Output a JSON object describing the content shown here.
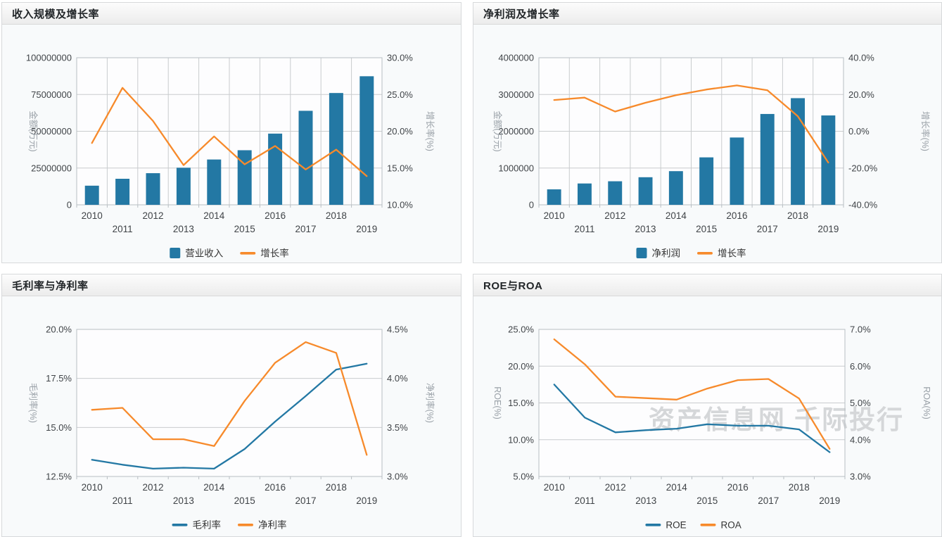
{
  "colors": {
    "bar_blue": "#2378A4",
    "line_blue": "#2378A4",
    "line_orange": "#F78A2B",
    "grid_line": "#C9CCCE",
    "axis_line": "#B8BEC3",
    "tick_text": "#404448",
    "axis_title_text": "#9AA1A8",
    "legend_text": "#333333",
    "watermark_text": "#D5D7D9",
    "plot_background": "#FDFDFE"
  },
  "watermark": "资产信息网 千际投行",
  "chart_data": [
    {
      "type": "bar+line",
      "title": "收入规模及增长率",
      "categories": [
        "2010",
        "2011",
        "2012",
        "2013",
        "2014",
        "2015",
        "2016",
        "2017",
        "2018",
        "2019"
      ],
      "left_axis": {
        "title": "金额(万元)",
        "min": 0,
        "max": 100000000,
        "tick_labels": [
          "0",
          "25000000",
          "50000000",
          "75000000",
          "100000000"
        ]
      },
      "right_axis": {
        "title": "增长率(%)",
        "min": 10,
        "max": 30,
        "tick_labels": [
          "10.0%",
          "15.0%",
          "20.0%",
          "25.0%",
          "30.0%"
        ]
      },
      "legend_position": "bottom",
      "grid": "horizontal+vertical",
      "series": [
        {
          "name": "营业收入",
          "type": "bar",
          "axis": "left",
          "values": [
            13000000,
            17700000,
            21500000,
            25200000,
            30800000,
            37100000,
            48400000,
            63900000,
            76000000,
            87400000
          ]
        },
        {
          "name": "增长率",
          "type": "line",
          "axis": "right",
          "values": [
            18.4,
            25.9,
            21.4,
            15.4,
            19.3,
            15.5,
            18.0,
            14.8,
            17.5,
            13.9
          ]
        }
      ]
    },
    {
      "type": "bar+line",
      "title": "净利润及增长率",
      "categories": [
        "2010",
        "2011",
        "2012",
        "2013",
        "2014",
        "2015",
        "2016",
        "2017",
        "2018",
        "2019"
      ],
      "left_axis": {
        "title": "金额(万元)",
        "min": 0,
        "max": 4000000,
        "tick_labels": [
          "0",
          "1000000",
          "2000000",
          "3000000",
          "4000000"
        ]
      },
      "right_axis": {
        "title": "增长率(%)",
        "min": -40,
        "max": 40,
        "tick_labels": [
          "-40.0%",
          "-20.0%",
          "0.0%",
          "20.0%",
          "40.0%"
        ]
      },
      "legend_position": "bottom",
      "grid": "horizontal+vertical",
      "series": [
        {
          "name": "净利润",
          "type": "bar",
          "axis": "left",
          "values": [
            420000,
            580000,
            640000,
            750000,
            915000,
            1290000,
            1830000,
            2470000,
            2900000,
            2430000
          ]
        },
        {
          "name": "增长率",
          "type": "line",
          "axis": "right",
          "values": [
            17.0,
            18.3,
            10.7,
            15.5,
            19.6,
            22.7,
            24.9,
            22.3,
            8.2,
            -17.0
          ]
        }
      ]
    },
    {
      "type": "line",
      "title": "毛利率与净利率",
      "categories": [
        "2010",
        "2011",
        "2012",
        "2013",
        "2014",
        "2015",
        "2016",
        "2017",
        "2018",
        "2019"
      ],
      "left_axis": {
        "title": "毛利率(%)",
        "min": 12.5,
        "max": 20.0,
        "tick_labels": [
          "12.5%",
          "15.0%",
          "17.5%",
          "20.0%"
        ]
      },
      "right_axis": {
        "title": "净利率(%)",
        "min": 3.0,
        "max": 4.5,
        "tick_labels": [
          "3.0%",
          "3.5%",
          "4.0%",
          "4.5%"
        ]
      },
      "legend_position": "bottom",
      "grid": "horizontal",
      "series": [
        {
          "name": "毛利率",
          "type": "line",
          "axis": "left",
          "values": [
            13.35,
            13.1,
            12.9,
            12.95,
            12.9,
            13.9,
            15.3,
            16.6,
            17.95,
            18.25
          ]
        },
        {
          "name": "净利率",
          "type": "line",
          "axis": "right",
          "values": [
            3.68,
            3.7,
            3.38,
            3.38,
            3.31,
            3.77,
            4.16,
            4.37,
            4.26,
            3.22
          ]
        }
      ]
    },
    {
      "type": "line",
      "title": "ROE与ROA",
      "categories": [
        "2010",
        "2011",
        "2012",
        "2013",
        "2014",
        "2015",
        "2016",
        "2017",
        "2018",
        "2019"
      ],
      "left_axis": {
        "title": "ROE(%)",
        "min": 5.0,
        "max": 25.0,
        "tick_labels": [
          "5.0%",
          "10.0%",
          "15.0%",
          "20.0%",
          "25.0%"
        ]
      },
      "right_axis": {
        "title": "ROA(%)",
        "min": 3.0,
        "max": 7.0,
        "tick_labels": [
          "3.0%",
          "4.0%",
          "5.0%",
          "6.0%",
          "7.0%"
        ]
      },
      "legend_position": "bottom",
      "grid": "horizontal",
      "has_watermark": true,
      "series": [
        {
          "name": "ROE",
          "type": "line",
          "axis": "left",
          "values": [
            17.5,
            13.0,
            11.0,
            11.3,
            11.5,
            12.1,
            11.9,
            11.9,
            11.4,
            8.3
          ]
        },
        {
          "name": "ROA",
          "type": "line",
          "axis": "right",
          "values": [
            6.73,
            6.05,
            5.17,
            5.13,
            5.09,
            5.39,
            5.62,
            5.65,
            5.12,
            3.75
          ]
        }
      ]
    }
  ]
}
